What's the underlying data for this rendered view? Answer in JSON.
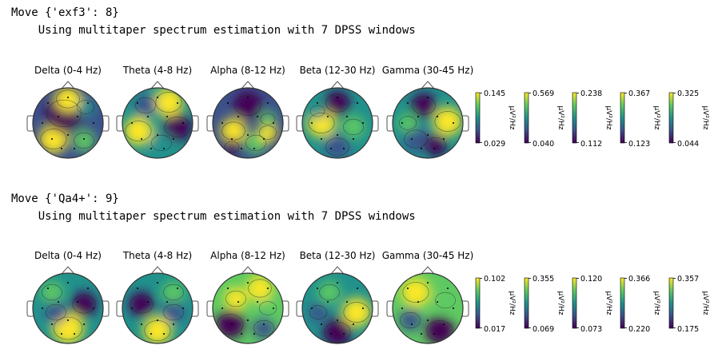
{
  "blocks": [
    {
      "move_line": "Move {'exf3': 8}",
      "info_line": "    Using multitaper spectrum estimation with 7 DPSS windows",
      "colorbars": [
        {
          "max": "0.145",
          "min": "0.029"
        },
        {
          "max": "0.569",
          "min": "0.040"
        },
        {
          "max": "0.238",
          "min": "0.112"
        },
        {
          "max": "0.367",
          "min": "0.123"
        },
        {
          "max": "0.325",
          "min": "0.044"
        }
      ]
    },
    {
      "move_line": "Move {'Qa4+': 9}",
      "info_line": "    Using multitaper spectrum estimation with 7 DPSS windows",
      "colorbars": [
        {
          "max": "0.102",
          "min": "0.017"
        },
        {
          "max": "0.355",
          "min": "0.069"
        },
        {
          "max": "0.120",
          "min": "0.073"
        },
        {
          "max": "0.366",
          "min": "0.220"
        },
        {
          "max": "0.357",
          "min": "0.175"
        }
      ]
    }
  ],
  "bands": [
    "Delta (0-4 Hz)",
    "Theta (4-8 Hz)",
    "Alpha (8-12 Hz)",
    "Beta (12-30 Hz)",
    "Gamma (30-45 Hz)"
  ],
  "unit_label": "µV²/Hz",
  "colors": {
    "viridis": [
      "#440154",
      "#3b528b",
      "#21918c",
      "#5ec962",
      "#fde725"
    ]
  }
}
